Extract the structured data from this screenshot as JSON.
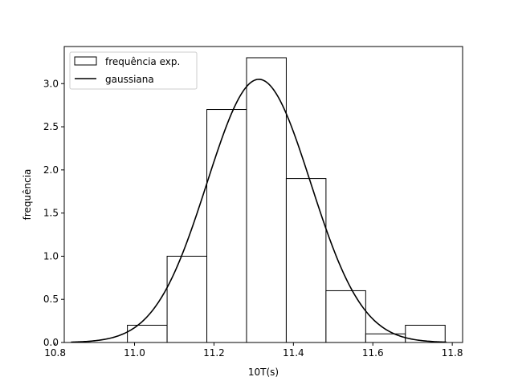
{
  "chart_data": {
    "type": "bar",
    "xlabel": "10T(s)",
    "ylabel": "frequência",
    "xlim": [
      10.823,
      11.826
    ],
    "ylim": [
      0,
      3.43
    ],
    "grid": false,
    "legend_position": "top-left",
    "x_ticks": [
      "10.8",
      "11.0",
      "11.2",
      "11.4",
      "11.6",
      "11.8"
    ],
    "y_ticks": [
      "0.0",
      "0.5",
      "1.0",
      "1.5",
      "2.0",
      "2.5",
      "3.0"
    ],
    "histogram": {
      "name": "frequência exp.",
      "bin_edges": [
        10.982,
        11.082,
        11.182,
        11.282,
        11.382,
        11.482,
        11.582,
        11.682,
        11.782
      ],
      "values": [
        0.2,
        1.0,
        2.7,
        3.3,
        1.9,
        0.6,
        0.1,
        0.2
      ]
    },
    "gaussian": {
      "name": "gaussiana",
      "mean": 11.313,
      "sigma": 0.1305,
      "peak": 3.05,
      "x_range": [
        10.84,
        11.785
      ]
    },
    "colors": {
      "bar_fill": "#ffffff",
      "bar_edge": "#000000",
      "line": "#000000"
    }
  }
}
